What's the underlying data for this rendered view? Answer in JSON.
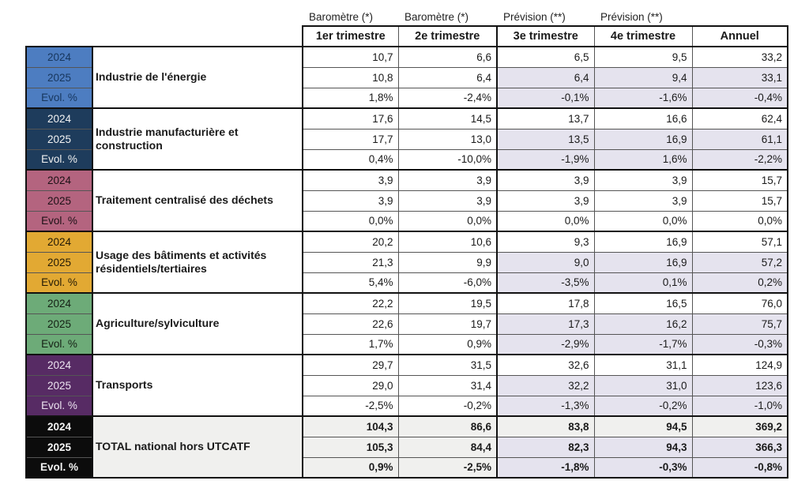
{
  "chart_data": {
    "type": "table",
    "title": "",
    "column_group_labels": [
      "Baromètre (*)",
      "Baromètre (*)",
      "Prévision (**)",
      "Prévision (**)",
      ""
    ],
    "columns": [
      "1er trimestre",
      "2e trimestre",
      "3e trimestre",
      "4e trimestre",
      "Annuel"
    ],
    "row_labels": [
      "2024",
      "2025",
      "Evol. %"
    ],
    "highlight_bg": "#e5e3ee",
    "colors": {
      "thin_border": "#555555",
      "thick_border": "#111111",
      "forecast_highlight": "#e5e3ee",
      "total_row_bg": "#f0f0ee"
    },
    "groups": [
      {
        "sector": "Industrie de l'énergie",
        "swatch_color": "#4d7dc1",
        "swatch_text_color": "#17365d",
        "base_bg": "#ffffff",
        "bold": false,
        "forecast_highlight": true,
        "rows": {
          "y2024": [
            "10,7",
            "6,6",
            "6,5",
            "9,5",
            "33,2"
          ],
          "y2025": [
            "10,8",
            "6,4",
            "6,4",
            "9,4",
            "33,1"
          ],
          "evol": [
            "1,8%",
            "-2,4%",
            "-0,1%",
            "-1,6%",
            "-0,4%"
          ]
        }
      },
      {
        "sector": "Industrie manufacturière et construction",
        "swatch_color": "#1e3c5c",
        "swatch_text_color": "#f2f2f2",
        "base_bg": "#ffffff",
        "bold": false,
        "forecast_highlight": true,
        "rows": {
          "y2024": [
            "17,6",
            "14,5",
            "13,7",
            "16,6",
            "62,4"
          ],
          "y2025": [
            "17,7",
            "13,0",
            "13,5",
            "16,9",
            "61,1"
          ],
          "evol": [
            "0,4%",
            "-10,0%",
            "-1,9%",
            "1,6%",
            "-2,2%"
          ]
        }
      },
      {
        "sector": "Traitement centralisé des déchets",
        "swatch_color": "#b4647f",
        "swatch_text_color": "#1c1116",
        "base_bg": "#ffffff",
        "bold": false,
        "forecast_highlight": false,
        "rows": {
          "y2024": [
            "3,9",
            "3,9",
            "3,9",
            "3,9",
            "15,7"
          ],
          "y2025": [
            "3,9",
            "3,9",
            "3,9",
            "3,9",
            "15,7"
          ],
          "evol": [
            "0,0%",
            "0,0%",
            "0,0%",
            "0,0%",
            "0,0%"
          ]
        }
      },
      {
        "sector": "Usage des bâtiments et activités résidentiels/tertiaires",
        "swatch_color": "#e2a933",
        "swatch_text_color": "#231a06",
        "base_bg": "#ffffff",
        "bold": false,
        "forecast_highlight": true,
        "rows": {
          "y2024": [
            "20,2",
            "10,6",
            "9,3",
            "16,9",
            "57,1"
          ],
          "y2025": [
            "21,3",
            "9,9",
            "9,0",
            "16,9",
            "57,2"
          ],
          "evol": [
            "5,4%",
            "-6,0%",
            "-3,5%",
            "0,1%",
            "0,2%"
          ]
        }
      },
      {
        "sector": "Agriculture/sylviculture",
        "swatch_color": "#6dab78",
        "swatch_text_color": "#152015",
        "base_bg": "#ffffff",
        "bold": false,
        "forecast_highlight": true,
        "rows": {
          "y2024": [
            "22,2",
            "19,5",
            "17,8",
            "16,5",
            "76,0"
          ],
          "y2025": [
            "22,6",
            "19,7",
            "17,3",
            "16,2",
            "75,7"
          ],
          "evol": [
            "1,7%",
            "0,9%",
            "-2,9%",
            "-1,7%",
            "-0,3%"
          ]
        }
      },
      {
        "sector": "Transports",
        "swatch_color": "#572b64",
        "swatch_text_color": "#ece4f0",
        "base_bg": "#ffffff",
        "bold": false,
        "forecast_highlight": true,
        "rows": {
          "y2024": [
            "29,7",
            "31,5",
            "32,6",
            "31,1",
            "124,9"
          ],
          "y2025": [
            "29,0",
            "31,4",
            "32,2",
            "31,0",
            "123,6"
          ],
          "evol": [
            "-2,5%",
            "-0,2%",
            "-1,3%",
            "-0,2%",
            "-1,0%"
          ]
        }
      },
      {
        "sector": "TOTAL national hors UTCATF",
        "swatch_color": "#0c0c0c",
        "swatch_text_color": "#f5f5f5",
        "base_bg": "#f0f0ee",
        "bold": true,
        "forecast_highlight": true,
        "rows": {
          "y2024": [
            "104,3",
            "86,6",
            "83,8",
            "94,5",
            "369,2"
          ],
          "y2025": [
            "105,3",
            "84,4",
            "82,3",
            "94,3",
            "366,3"
          ],
          "evol": [
            "0,9%",
            "-2,5%",
            "-1,8%",
            "-0,3%",
            "-0,8%"
          ]
        }
      }
    ]
  }
}
